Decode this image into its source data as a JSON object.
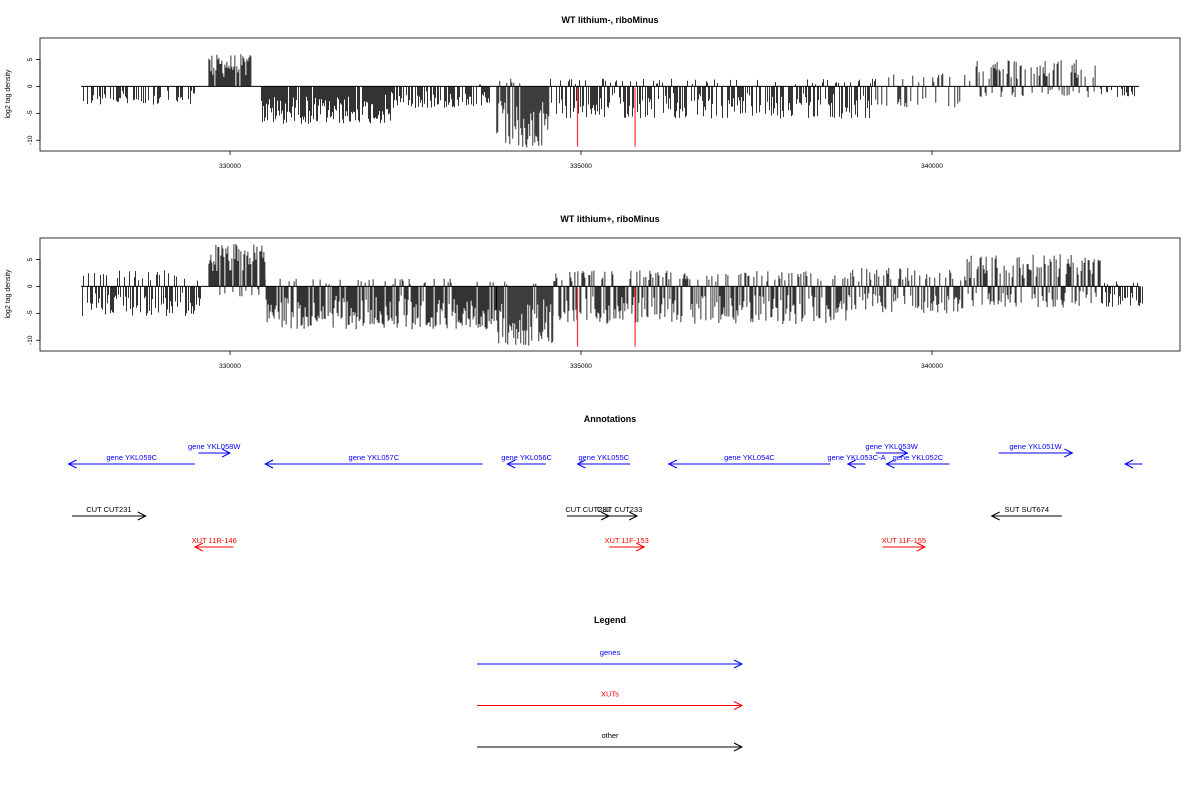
{
  "chart_data": [
    {
      "type": "bar",
      "title": "WT lithium-, riboMinus",
      "ylabel": "log2 tag density",
      "xlim": [
        327800,
        343000
      ],
      "ylim": [
        -12,
        9
      ],
      "x_ticks": [
        330000,
        335000,
        340000
      ],
      "x_tick_labels": [
        "330000",
        "335000",
        "340000"
      ],
      "y_ticks": [
        5,
        0,
        -5,
        -10
      ],
      "y_tick_labels": [
        "5",
        "0",
        "-5",
        "-10"
      ],
      "baseline": 0,
      "red_marks_x": [
        334950,
        335770
      ],
      "signal_regions": [
        {
          "start": 327900,
          "end": 329500,
          "min": -3.5,
          "max": 0,
          "density": 0.45
        },
        {
          "start": 329700,
          "end": 330300,
          "min": 0,
          "max": 6,
          "density": 0.95
        },
        {
          "start": 330450,
          "end": 332300,
          "min": -7,
          "max": 0,
          "density": 0.95
        },
        {
          "start": 332300,
          "end": 333700,
          "min": -4,
          "max": 0.5,
          "density": 0.7
        },
        {
          "start": 333800,
          "end": 334550,
          "min": -11.5,
          "max": 2,
          "density": 1.0
        },
        {
          "start": 334550,
          "end": 339200,
          "min": -6,
          "max": 1.5,
          "density": 0.7
        },
        {
          "start": 339200,
          "end": 340600,
          "min": -4,
          "max": 2.5,
          "density": 0.3
        },
        {
          "start": 340600,
          "end": 342400,
          "min": -2,
          "max": 5,
          "density": 0.6
        },
        {
          "start": 342400,
          "end": 342900,
          "min": -2,
          "max": 0,
          "density": 0.3
        }
      ]
    },
    {
      "type": "bar",
      "title": "WT lithium+, riboMinus",
      "ylabel": "log2 tag density",
      "xlim": [
        327800,
        343000
      ],
      "ylim": [
        -12,
        9
      ],
      "x_ticks": [
        330000,
        335000,
        340000
      ],
      "x_tick_labels": [
        "330000",
        "335000",
        "340000"
      ],
      "y_ticks": [
        5,
        0,
        -5,
        -10
      ],
      "y_tick_labels": [
        "5",
        "0",
        "-5",
        "-10"
      ],
      "baseline": 0,
      "red_marks_x": [
        334950,
        335770
      ],
      "signal_regions": [
        {
          "start": 327900,
          "end": 329600,
          "min": -5.5,
          "max": 3,
          "density": 0.85
        },
        {
          "start": 329700,
          "end": 330500,
          "min": -2,
          "max": 8,
          "density": 1.0
        },
        {
          "start": 330500,
          "end": 333800,
          "min": -8,
          "max": 1.5,
          "density": 0.95
        },
        {
          "start": 333800,
          "end": 334600,
          "min": -11,
          "max": 1,
          "density": 1.0
        },
        {
          "start": 334600,
          "end": 338800,
          "min": -7,
          "max": 3,
          "density": 0.9
        },
        {
          "start": 338800,
          "end": 340500,
          "min": -5,
          "max": 3.5,
          "density": 0.8
        },
        {
          "start": 340500,
          "end": 342400,
          "min": -4,
          "max": 6,
          "density": 0.95
        },
        {
          "start": 342400,
          "end": 343000,
          "min": -4,
          "max": 1,
          "density": 0.6
        }
      ]
    },
    {
      "type": "table",
      "title": "Annotations",
      "features": [
        {
          "label": "gene YKL059C",
          "start": 329500,
          "end": 327700,
          "row": 1,
          "color": "#0000ff"
        },
        {
          "label": "gene YKL058W",
          "start": 329550,
          "end": 330000,
          "row": 0,
          "color": "#0000ff"
        },
        {
          "label": "gene YKL057C",
          "start": 333600,
          "end": 330500,
          "row": 1,
          "color": "#0000ff"
        },
        {
          "label": "gene YKL056C",
          "start": 334500,
          "end": 333950,
          "row": 1,
          "color": "#0000ff"
        },
        {
          "label": "gene YKL055C",
          "start": 335700,
          "end": 334950,
          "row": 1,
          "color": "#0000ff"
        },
        {
          "label": "gene YKL054C",
          "start": 338550,
          "end": 336250,
          "row": 1,
          "color": "#0000ff"
        },
        {
          "label": "gene YKL053W",
          "start": 339200,
          "end": 339650,
          "row": 0,
          "color": "#0000ff"
        },
        {
          "label": "gene YKL053C-A",
          "start": 339050,
          "end": 338800,
          "row": 1,
          "color": "#0000ff"
        },
        {
          "label": "gene YKL052C",
          "start": 340250,
          "end": 339350,
          "row": 1,
          "color": "#0000ff"
        },
        {
          "label": "gene YKL051W",
          "start": 340950,
          "end": 342000,
          "row": 0,
          "color": "#0000ff"
        },
        {
          "label": "",
          "start": 343000,
          "end": 342750,
          "row": 1,
          "color": "#0000ff"
        },
        {
          "label": "CUT CUT231",
          "start": 327750,
          "end": 328800,
          "row": 2,
          "color": "#000000"
        },
        {
          "label": "CUT CUT232",
          "start": 334800,
          "end": 335400,
          "row": 2,
          "color": "#000000"
        },
        {
          "label": "CUT CUT233",
          "start": 335300,
          "end": 335800,
          "row": 2,
          "color": "#000000"
        },
        {
          "label": "SUT SUT674",
          "start": 341850,
          "end": 340850,
          "row": 2,
          "color": "#000000"
        },
        {
          "label": "XUT 11R-146",
          "start": 330050,
          "end": 329500,
          "row": 3,
          "color": "#ff0000"
        },
        {
          "label": "XUT 11F-153",
          "start": 335400,
          "end": 335900,
          "row": 3,
          "color": "#ff0000"
        },
        {
          "label": "XUT 11F-155",
          "start": 339300,
          "end": 339900,
          "row": 3,
          "color": "#ff0000"
        }
      ]
    },
    {
      "type": "table",
      "title": "Legend",
      "entries": [
        {
          "label": "genes",
          "color": "#0000ff"
        },
        {
          "label": "XUTs",
          "color": "#ff0000"
        },
        {
          "label": "other",
          "color": "#000000"
        }
      ]
    }
  ]
}
